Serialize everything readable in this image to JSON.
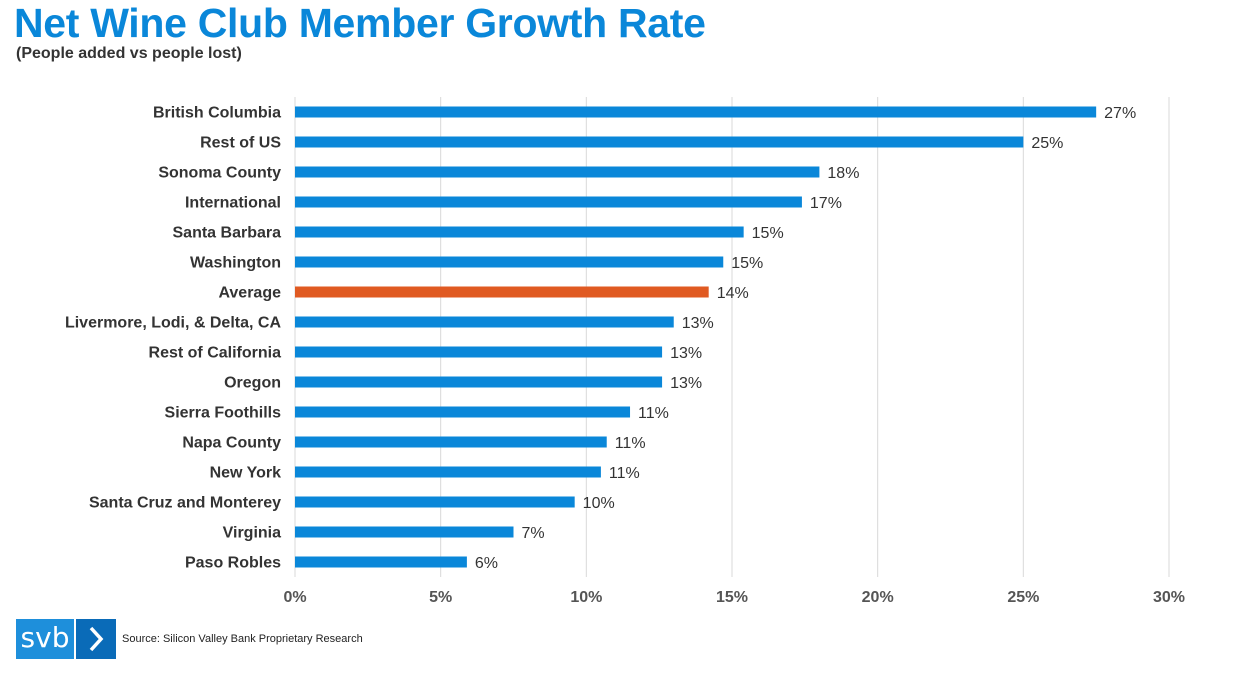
{
  "title": "Net Wine Club Member Growth Rate",
  "subtitle": "(People added vs people lost)",
  "source": "Source: Silicon Valley Bank Proprietary Research",
  "logo": {
    "text": "svb",
    "icon": "chevron-right-icon"
  },
  "colors": {
    "title": "#0a87d9",
    "bar": "#0a87d9",
    "highlight": "#e05a22",
    "grid": "#d9d9d9",
    "text": "#333333"
  },
  "chart_data": {
    "type": "bar",
    "orientation": "horizontal",
    "title": "Net Wine Club Member Growth Rate",
    "subtitle": "(People added vs people lost)",
    "categories": [
      "British Columbia",
      "Rest of US",
      "Sonoma County",
      "International",
      "Santa Barbara",
      "Washington",
      "Average",
      "Livermore, Lodi, & Delta, CA",
      "Rest of California",
      "Oregon",
      "Sierra Foothills",
      "Napa County",
      "New York",
      "Santa Cruz and Monterey",
      "Virginia",
      "Paso Robles"
    ],
    "values": [
      27.5,
      25.0,
      18.0,
      17.4,
      15.4,
      14.7,
      14.2,
      13.0,
      12.6,
      12.6,
      11.5,
      10.7,
      10.5,
      9.6,
      7.5,
      5.9
    ],
    "labels": [
      "27%",
      "25%",
      "18%",
      "17%",
      "15%",
      "15%",
      "14%",
      "13%",
      "13%",
      "13%",
      "11%",
      "11%",
      "11%",
      "10%",
      "7%",
      "6%"
    ],
    "highlight": "Average",
    "xlim": [
      0,
      30
    ],
    "xticks": [
      0,
      5,
      10,
      15,
      20,
      25,
      30
    ],
    "xtick_labels": [
      "0%",
      "5%",
      "10%",
      "15%",
      "20%",
      "25%",
      "30%"
    ],
    "xlabel": "",
    "ylabel": "",
    "grid": true,
    "legend": "none"
  }
}
